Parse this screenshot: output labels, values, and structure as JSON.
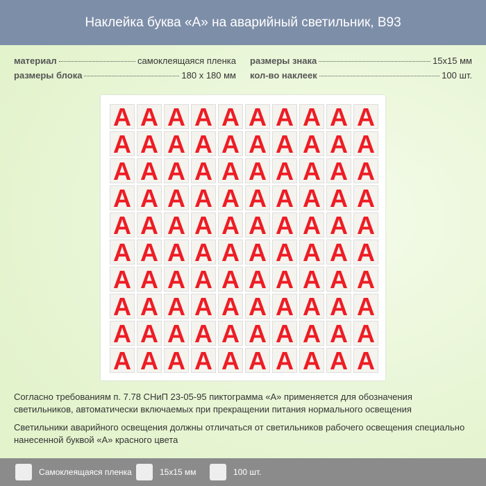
{
  "header": {
    "title": "Наклейка буква «А» на аварийный светильник, B93"
  },
  "specs": [
    {
      "label": "материал",
      "value": "самоклеящаяся пленка"
    },
    {
      "label": "размеры знака",
      "value": "15x15 мм"
    },
    {
      "label": "размеры блока",
      "value": "180 x 180 мм"
    },
    {
      "label": "кол-во наклеек",
      "value": "100 шт."
    }
  ],
  "sticker": {
    "letter": "А"
  },
  "description": [
    "Согласно требованиям п. 7.78 СНиП 23-05-95 пиктограмма «А» применяется для обозначения светильников, автоматически включаемых при прекращении питания нормального освещения",
    "Светильники аварийного освещения должны отличаться от светильников рабочего освещения специально нанесенной буквой «А» красного цвета"
  ],
  "footer": {
    "items": [
      "Самоклеящаяся пленка",
      "15x15 мм",
      "100 шт."
    ]
  }
}
